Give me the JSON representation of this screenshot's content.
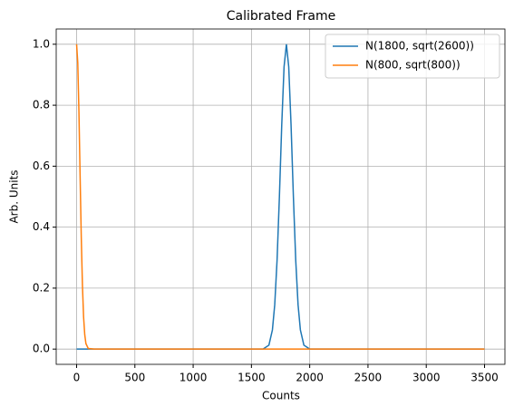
{
  "chart_data": {
    "type": "line",
    "title": "Calibrated Frame",
    "x_label": "Counts",
    "y_label": "Arb. Units",
    "x": [
      0,
      10,
      20,
      30,
      40,
      50,
      60,
      70,
      80,
      100,
      150,
      1000,
      1600,
      1650,
      1680,
      1700,
      1720,
      1740,
      1760,
      1780,
      1800,
      1820,
      1840,
      1860,
      1880,
      1900,
      1920,
      1950,
      2000,
      2500,
      3500
    ],
    "series": [
      {
        "name": "N(1800, sqrt(2600))",
        "color": "#1f77b4",
        "values": [
          0,
          0,
          0,
          0,
          0,
          0,
          0,
          0,
          0,
          0,
          0,
          0,
          0,
          0.013,
          0.063,
          0.146,
          0.292,
          0.5,
          0.735,
          0.926,
          1,
          0.926,
          0.735,
          0.5,
          0.292,
          0.146,
          0.063,
          0.013,
          0,
          0,
          0
        ]
      },
      {
        "name": "N(800, sqrt(800))",
        "color": "#ff7f0e",
        "values": [
          1,
          0.939,
          0.779,
          0.57,
          0.368,
          0.21,
          0.105,
          0.047,
          0.018,
          0.002,
          0,
          0,
          0,
          0,
          0,
          0,
          0,
          0,
          0,
          0,
          0,
          0,
          0,
          0,
          0,
          0,
          0,
          0,
          0,
          0,
          0
        ]
      }
    ],
    "xlim": [
      -175,
      3675
    ],
    "ylim": [
      -0.05,
      1.05
    ],
    "xticks": [
      0,
      500,
      1000,
      1500,
      2000,
      2500,
      3000,
      3500
    ],
    "yticks": [
      {
        "value": 0,
        "label": "0.0"
      },
      {
        "value": 0.2,
        "label": "0.2"
      },
      {
        "value": 0.4,
        "label": "0.4"
      },
      {
        "value": 0.6,
        "label": "0.6"
      },
      {
        "value": 0.8,
        "label": "0.8"
      },
      {
        "value": 1,
        "label": "1.0"
      }
    ],
    "grid": true,
    "legend": "upper-right"
  }
}
